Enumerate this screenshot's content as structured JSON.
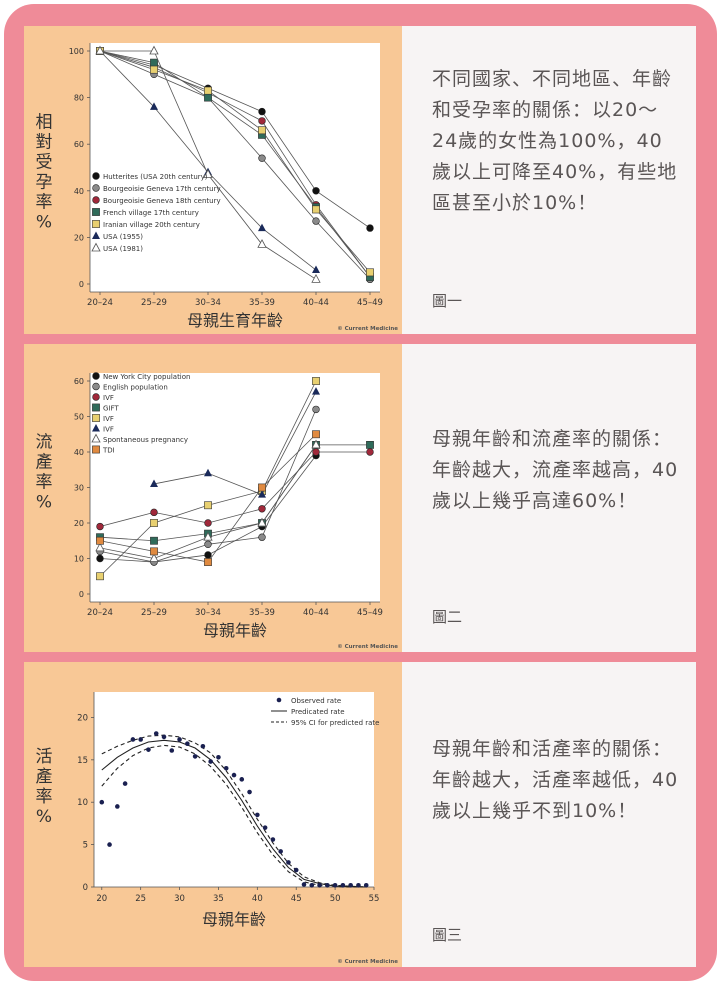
{
  "panels": [
    {
      "desc": "不同國家、不同地區、年齡和受孕率的關係：以20～24歲的女性為100%，40歲以上可降至40%，有些地區甚至小於10%！",
      "figure_label": "圖一",
      "credit": "© Current Medicine"
    },
    {
      "desc": "母親年齡和流產率的關係：年齡越大，流產率越高，40歲以上幾乎高達60%！",
      "figure_label": "圖二",
      "credit": "© Current Medicine"
    },
    {
      "desc": "母親年齡和活產率的關係：年齡越大，活產率越低，40歲以上幾乎不到10%！",
      "figure_label": "圖三",
      "credit": "© Current Medicine"
    }
  ],
  "colors": {
    "frame": "#ef8b98",
    "chart_bg": "#f8c896",
    "card_bg": "#f7f4f4",
    "text": "#5a5555"
  },
  "chart_data": [
    {
      "type": "line",
      "categories": [
        "20–24",
        "25–29",
        "30–34",
        "35–39",
        "40–44",
        "45–49"
      ],
      "ylabel": "相對受孕率\n%",
      "xlabel": "母親生育年齡",
      "ylim": [
        0,
        100
      ],
      "yticks": [
        "0",
        "20",
        "40",
        "60",
        "80",
        "100"
      ],
      "legend_position": "left-bottom",
      "series": [
        {
          "name": "Hutterites (USA 20th century)",
          "marker": "circle-filled",
          "color": "#111111",
          "values": [
            100,
            94,
            84,
            74,
            40,
            24
          ]
        },
        {
          "name": "Bourgeoisie Geneva 17th century",
          "marker": "circle-gray",
          "color": "#8a8a8a",
          "values": [
            100,
            90,
            80,
            54,
            27,
            2
          ]
        },
        {
          "name": "Bourgeoisie Geneva 18th century",
          "marker": "circle-red",
          "color": "#a0283a",
          "values": [
            100,
            93,
            82,
            70,
            34,
            3
          ]
        },
        {
          "name": "French village 17th century",
          "marker": "square-green",
          "color": "#2f6b5a",
          "values": [
            100,
            95,
            80,
            64,
            33,
            3
          ]
        },
        {
          "name": "Iranian village 20th century",
          "marker": "square-yellow",
          "color": "#e8d070",
          "values": [
            100,
            92,
            83,
            66,
            32,
            5
          ]
        },
        {
          "name": "USA (1955)",
          "marker": "triangle-filled",
          "color": "#1a2a5a",
          "values": [
            100,
            76,
            48,
            24,
            6,
            null
          ]
        },
        {
          "name": "USA (1981)",
          "marker": "triangle-open",
          "color": "#555555",
          "values": [
            100,
            100,
            47,
            17,
            2,
            null
          ]
        }
      ]
    },
    {
      "type": "line",
      "categories": [
        "20–24",
        "25–29",
        "30–34",
        "35–39",
        "40–44",
        "45–49"
      ],
      "ylabel": "流產率\n%",
      "xlabel": "母親年齡",
      "ylim": [
        0,
        60
      ],
      "yticks": [
        "0",
        "10",
        "20",
        "30",
        "40",
        "50",
        "60"
      ],
      "legend_position": "top-left",
      "series": [
        {
          "name": "New York City population",
          "marker": "circle-filled",
          "color": "#111111",
          "values": [
            10,
            9,
            11,
            19,
            39,
            null
          ]
        },
        {
          "name": "English population",
          "marker": "circle-gray",
          "color": "#8a8a8a",
          "values": [
            12,
            9,
            14,
            16,
            52,
            null
          ]
        },
        {
          "name": "IVF",
          "marker": "circle-red",
          "color": "#a0283a",
          "values": [
            19,
            23,
            20,
            24,
            40,
            40
          ]
        },
        {
          "name": "GIFT",
          "marker": "square-green",
          "color": "#2f6b5a",
          "values": [
            16,
            15,
            17,
            20,
            42,
            42
          ]
        },
        {
          "name": "IVF",
          "marker": "square-yellow",
          "color": "#e8d070",
          "values": [
            5,
            20,
            25,
            29,
            60,
            null
          ]
        },
        {
          "name": "IVF",
          "marker": "triangle-filled",
          "color": "#1a2a5a",
          "values": [
            null,
            31,
            34,
            28,
            57,
            null
          ]
        },
        {
          "name": "Spontaneous pregnancy",
          "marker": "triangle-open",
          "color": "#555555",
          "values": [
            13,
            10,
            16,
            20,
            42,
            null
          ]
        },
        {
          "name": "TDI",
          "marker": "square-orange",
          "color": "#e08a40",
          "values": [
            15,
            12,
            9,
            30,
            45,
            null
          ]
        }
      ]
    },
    {
      "type": "scatter",
      "ylabel": "活產率\n%",
      "xlabel": "母親年齡",
      "xlim": [
        19,
        55
      ],
      "ylim": [
        0,
        23
      ],
      "xticks": [
        "20",
        "25",
        "30",
        "35",
        "40",
        "45",
        "50",
        "55"
      ],
      "yticks": [
        "0",
        "5",
        "10",
        "15",
        "20"
      ],
      "legend_position": "top-right",
      "legend": [
        "Observed rate",
        "Predicated rate",
        "95% CI for predicted rate"
      ],
      "observed": {
        "x": [
          20,
          21,
          22,
          23,
          24,
          25,
          26,
          27,
          28,
          29,
          30,
          31,
          32,
          33,
          34,
          35,
          36,
          37,
          38,
          39,
          40,
          41,
          42,
          43,
          44,
          45,
          46,
          47,
          48,
          49,
          50,
          51,
          52,
          53,
          54
        ],
        "y": [
          10,
          5,
          9.5,
          12.2,
          17.4,
          17.4,
          16.2,
          18.1,
          17.7,
          16.1,
          17.4,
          16.9,
          15.4,
          16.6,
          14.8,
          15.3,
          14,
          13.2,
          12.7,
          11.2,
          8.5,
          7,
          5.6,
          4.2,
          2.9,
          2,
          0.3,
          0.2,
          0.2,
          0.2,
          0.2,
          0.2,
          0.2,
          0.2,
          0.2
        ]
      },
      "predicted": {
        "x": [
          20,
          22,
          24,
          26,
          28,
          30,
          32,
          34,
          36,
          38,
          40,
          42,
          44,
          46,
          48,
          50,
          52,
          54
        ],
        "y": [
          13.8,
          15.3,
          16.4,
          17.1,
          17.3,
          17.1,
          16.4,
          15,
          12.9,
          10.2,
          7.2,
          4.5,
          2.3,
          0.9,
          0.4,
          0.1,
          0.05,
          0
        ]
      },
      "ci_upper": {
        "x": [
          20,
          22,
          24,
          26,
          28,
          30,
          32,
          34,
          36,
          38,
          40,
          42,
          44,
          46,
          48,
          50,
          52,
          54
        ],
        "y": [
          15.7,
          16.6,
          17.3,
          17.8,
          17.9,
          17.7,
          17,
          15.8,
          13.7,
          11,
          8,
          5.2,
          2.8,
          1.2,
          0.5,
          0.2,
          0.1,
          0
        ]
      },
      "ci_lower": {
        "x": [
          20,
          22,
          24,
          26,
          28,
          30,
          32,
          34,
          36,
          38,
          40,
          42,
          44,
          46,
          48,
          50,
          52,
          54
        ],
        "y": [
          11.9,
          14,
          15.5,
          16.4,
          16.7,
          16.5,
          15.7,
          14.2,
          12.1,
          9.4,
          6.4,
          3.8,
          1.8,
          0.6,
          0.2,
          0.05,
          0,
          0
        ]
      }
    }
  ]
}
